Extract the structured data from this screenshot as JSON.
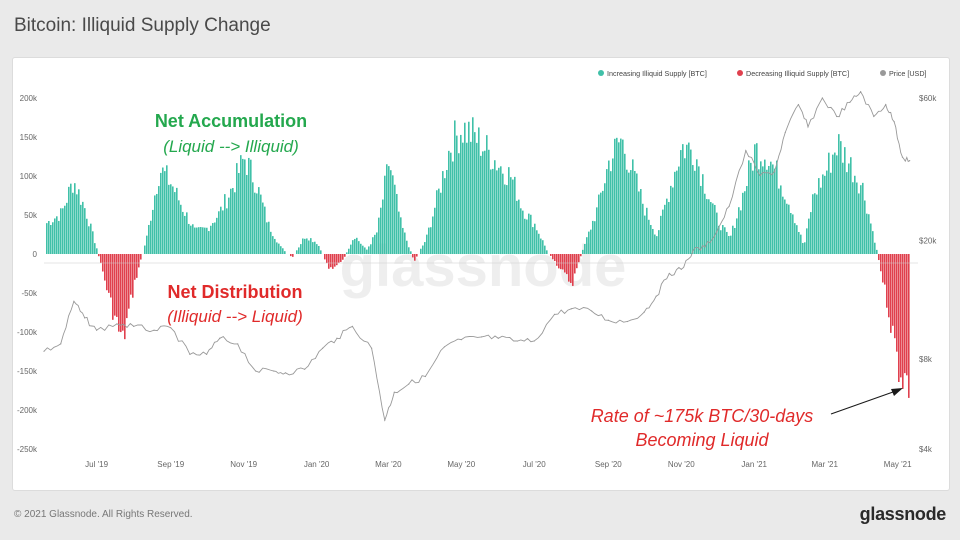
{
  "page": {
    "title": "Bitcoin: Illiquid Supply Change",
    "footer_copyright": "© 2021 Glassnode. All Rights Reserved.",
    "footer_logo": "glassnode",
    "watermark": "glassnode"
  },
  "chart_data": {
    "type": "bar",
    "title": "Bitcoin: Illiquid Supply Change",
    "legend": [
      {
        "name": "Increasing Illiquid Supply [BTC]",
        "color": "#40c0a8"
      },
      {
        "name": "Decreasing Illiquid Supply [BTC]",
        "color": "#e0404e"
      },
      {
        "name": "Price [USD]",
        "color": "#999999"
      }
    ],
    "legend_position": "top-right",
    "y_left": {
      "ylim": [
        -250000,
        200000
      ],
      "ticks": [
        200000,
        150000,
        100000,
        50000,
        0,
        -50000,
        -100000,
        -150000,
        -200000,
        -250000
      ],
      "tick_labels": [
        "200k",
        "150k",
        "100k",
        "50k",
        "0",
        "-50k",
        "-100k",
        "-150k",
        "-200k",
        "-250k"
      ]
    },
    "y_right": {
      "scale": "log",
      "ylim": [
        4000,
        60000
      ],
      "ticks": [
        60000,
        20000,
        8000,
        4000
      ],
      "tick_labels": [
        "$60k",
        "$20k",
        "$8k",
        "$4k"
      ]
    },
    "x": {
      "start": "2019-06-01",
      "end": "2021-06-01",
      "tick_dates": [
        "2019-07-15",
        "2019-09-15",
        "2019-11-15",
        "2020-01-15",
        "2020-03-15",
        "2020-05-15",
        "2020-07-15",
        "2020-09-15",
        "2020-11-15",
        "2021-01-15",
        "2021-03-15",
        "2021-05-15"
      ],
      "tick_labels": [
        "Jul '19",
        "Sep '19",
        "Nov '19",
        "Jan '20",
        "Mar '20",
        "May '20",
        "Jul '20",
        "Sep '20",
        "Nov '20",
        "Jan '21",
        "Mar '21",
        "May '21"
      ]
    },
    "series": [
      {
        "name": "Illiquid Supply Change [BTC]",
        "kind": "bar",
        "positive_color": "#40c0a8",
        "negative_color": "#e0404e",
        "x": [
          "2019-06-01",
          "2019-06-15",
          "2019-06-25",
          "2019-07-05",
          "2019-07-15",
          "2019-07-25",
          "2019-08-05",
          "2019-08-15",
          "2019-08-25",
          "2019-09-05",
          "2019-09-15",
          "2019-09-25",
          "2019-10-05",
          "2019-10-15",
          "2019-10-25",
          "2019-11-05",
          "2019-11-15",
          "2019-11-25",
          "2019-12-05",
          "2019-12-15",
          "2019-12-25",
          "2020-01-05",
          "2020-01-15",
          "2020-01-25",
          "2020-02-05",
          "2020-02-15",
          "2020-02-25",
          "2020-03-05",
          "2020-03-15",
          "2020-03-25",
          "2020-04-05",
          "2020-04-15",
          "2020-04-25",
          "2020-05-05",
          "2020-05-15",
          "2020-05-25",
          "2020-06-05",
          "2020-06-15",
          "2020-06-25",
          "2020-07-05",
          "2020-07-15",
          "2020-07-25",
          "2020-08-05",
          "2020-08-15",
          "2020-08-25",
          "2020-09-05",
          "2020-09-15",
          "2020-09-25",
          "2020-10-05",
          "2020-10-15",
          "2020-10-25",
          "2020-11-05",
          "2020-11-15",
          "2020-11-25",
          "2020-12-05",
          "2020-12-15",
          "2020-12-25",
          "2021-01-05",
          "2021-01-15",
          "2021-01-25",
          "2021-02-05",
          "2021-02-15",
          "2021-02-25",
          "2021-03-05",
          "2021-03-15",
          "2021-03-25",
          "2021-04-05",
          "2021-04-15",
          "2021-04-25",
          "2021-05-05",
          "2021-05-15",
          "2021-05-25"
        ],
        "values": [
          40000,
          55000,
          100000,
          60000,
          5000,
          -60000,
          -120000,
          -40000,
          20000,
          115000,
          95000,
          60000,
          30000,
          35000,
          55000,
          90000,
          130000,
          95000,
          40000,
          10000,
          -5000,
          25000,
          15000,
          -20000,
          -10000,
          25000,
          5000,
          30000,
          125000,
          40000,
          -10000,
          20000,
          80000,
          145000,
          170000,
          160000,
          140000,
          120000,
          105000,
          60000,
          40000,
          5000,
          -20000,
          -40000,
          10000,
          60000,
          125000,
          155000,
          110000,
          60000,
          25000,
          90000,
          145000,
          140000,
          90000,
          45000,
          20000,
          80000,
          140000,
          135000,
          100000,
          60000,
          10000,
          80000,
          110000,
          150000,
          120000,
          90000,
          20000,
          -60000,
          -150000,
          -180000
        ]
      },
      {
        "name": "Price [USD]",
        "kind": "line",
        "axis": "right",
        "color": "#999999",
        "x": [
          "2019-06-01",
          "2019-06-15",
          "2019-06-26",
          "2019-07-05",
          "2019-07-15",
          "2019-08-01",
          "2019-08-15",
          "2019-09-01",
          "2019-09-15",
          "2019-10-01",
          "2019-10-15",
          "2019-10-26",
          "2019-11-10",
          "2019-11-25",
          "2019-12-10",
          "2019-12-20",
          "2020-01-05",
          "2020-01-20",
          "2020-02-01",
          "2020-02-14",
          "2020-03-01",
          "2020-03-12",
          "2020-03-20",
          "2020-04-01",
          "2020-04-15",
          "2020-05-01",
          "2020-05-15",
          "2020-06-01",
          "2020-06-15",
          "2020-07-01",
          "2020-07-15",
          "2020-08-01",
          "2020-08-15",
          "2020-09-01",
          "2020-09-15",
          "2020-10-01",
          "2020-10-15",
          "2020-10-25",
          "2020-11-05",
          "2020-11-15",
          "2020-11-25",
          "2020-12-05",
          "2020-12-15",
          "2020-12-25",
          "2021-01-08",
          "2021-01-20",
          "2021-02-01",
          "2021-02-10",
          "2021-02-21",
          "2021-03-01",
          "2021-03-13",
          "2021-03-25",
          "2021-04-05",
          "2021-04-14",
          "2021-04-25",
          "2021-05-05",
          "2021-05-12",
          "2021-05-19",
          "2021-05-25"
        ],
        "values": [
          8500,
          9000,
          12500,
          11000,
          10000,
          10500,
          10300,
          10000,
          10200,
          8300,
          8300,
          9400,
          9000,
          7300,
          7300,
          7200,
          7400,
          8700,
          9400,
          10300,
          8700,
          5000,
          6200,
          6600,
          7000,
          8800,
          9300,
          9500,
          9400,
          9200,
          9200,
          11300,
          11800,
          11600,
          10800,
          10700,
          11500,
          13000,
          15500,
          16000,
          18500,
          19000,
          21500,
          26000,
          40000,
          33000,
          34000,
          46000,
          57000,
          48000,
          60000,
          52000,
          58000,
          63000,
          52000,
          57000,
          50000,
          38000,
          37000
        ]
      }
    ],
    "annotations": [
      {
        "text": "Net Accumulation",
        "color": "#24a84e"
      },
      {
        "text": "(Liquid --> Illiquid)",
        "color": "#24a84e"
      },
      {
        "text": "Net Distribution",
        "color": "#e02a2a"
      },
      {
        "text": "(Illiquid --> Liquid)",
        "color": "#e02a2a"
      },
      {
        "text": "Rate of ~175k BTC/30-days",
        "color": "#e02a2a"
      },
      {
        "text": "Becoming Liquid",
        "color": "#e02a2a"
      }
    ]
  }
}
